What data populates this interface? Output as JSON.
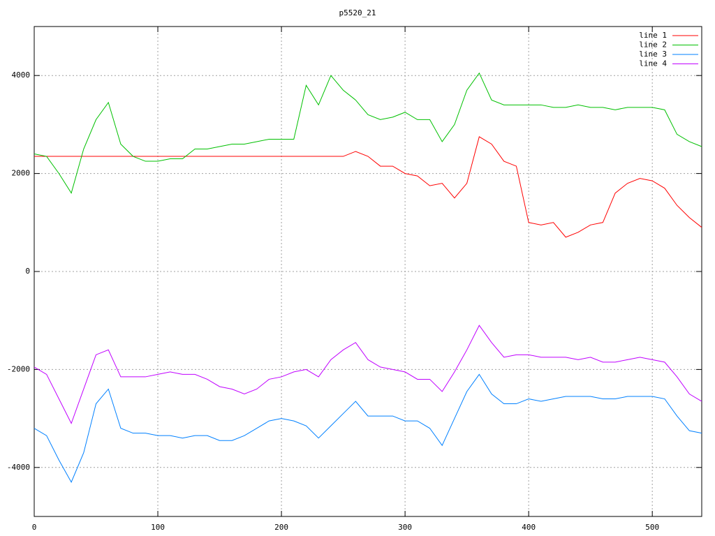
{
  "chart_data": {
    "type": "line",
    "title": "p5520_21",
    "x": [
      0,
      10,
      20,
      30,
      40,
      50,
      60,
      70,
      80,
      90,
      100,
      110,
      120,
      130,
      140,
      150,
      160,
      170,
      180,
      190,
      200,
      210,
      220,
      230,
      240,
      250,
      260,
      270,
      280,
      290,
      300,
      310,
      320,
      330,
      340,
      350,
      360,
      370,
      380,
      390,
      400,
      410,
      420,
      430,
      440,
      450,
      460,
      470,
      480,
      490,
      500,
      510,
      520,
      530,
      540
    ],
    "series": [
      {
        "name": "line 1",
        "color": "#ff0000",
        "values": [
          2350,
          2350,
          2350,
          2350,
          2350,
          2350,
          2350,
          2350,
          2350,
          2350,
          2350,
          2350,
          2350,
          2350,
          2350,
          2350,
          2350,
          2350,
          2350,
          2350,
          2350,
          2350,
          2350,
          2350,
          2350,
          2350,
          2450,
          2350,
          2150,
          2150,
          2000,
          1950,
          1750,
          1800,
          1500,
          1800,
          2750,
          2600,
          2250,
          2150,
          1000,
          950,
          1000,
          700,
          800,
          950,
          1000,
          1600,
          1800,
          1900,
          1850,
          1700,
          1350,
          1100,
          900
        ]
      },
      {
        "name": "line 2",
        "color": "#00c000",
        "values": [
          2400,
          2350,
          2000,
          1600,
          2500,
          3100,
          3450,
          2600,
          2350,
          2250,
          2250,
          2300,
          2300,
          2500,
          2500,
          2550,
          2600,
          2600,
          2650,
          2700,
          2700,
          2700,
          3800,
          3400,
          4000,
          3700,
          3500,
          3200,
          3100,
          3150,
          3250,
          3100,
          3100,
          2650,
          3000,
          3700,
          4050,
          3500,
          3400,
          3400,
          3400,
          3400,
          3350,
          3350,
          3400,
          3350,
          3350,
          3300,
          3350,
          3350,
          3350,
          3300,
          2800,
          2650,
          2550
        ]
      },
      {
        "name": "line 3",
        "color": "#0080ff",
        "values": [
          -3200,
          -3350,
          -3850,
          -4300,
          -3700,
          -2700,
          -2400,
          -3200,
          -3300,
          -3300,
          -3350,
          -3350,
          -3400,
          -3350,
          -3350,
          -3450,
          -3450,
          -3350,
          -3200,
          -3050,
          -3000,
          -3050,
          -3150,
          -3400,
          -3150,
          -2900,
          -2650,
          -2950,
          -2950,
          -2950,
          -3050,
          -3050,
          -3200,
          -3550,
          -3000,
          -2450,
          -2100,
          -2500,
          -2700,
          -2700,
          -2600,
          -2650,
          -2600,
          -2550,
          -2550,
          -2550,
          -2600,
          -2600,
          -2550,
          -2550,
          -2550,
          -2600,
          -2950,
          -3250,
          -3300
        ]
      },
      {
        "name": "line 4",
        "color": "#c000ff",
        "values": [
          -1950,
          -2100,
          -2600,
          -3100,
          -2400,
          -1700,
          -1600,
          -2150,
          -2150,
          -2150,
          -2100,
          -2050,
          -2100,
          -2100,
          -2200,
          -2350,
          -2400,
          -2500,
          -2400,
          -2200,
          -2150,
          -2050,
          -2000,
          -2150,
          -1800,
          -1600,
          -1450,
          -1800,
          -1950,
          -2000,
          -2050,
          -2200,
          -2200,
          -2450,
          -2050,
          -1600,
          -1100,
          -1450,
          -1750,
          -1700,
          -1700,
          -1750,
          -1750,
          -1750,
          -1800,
          -1750,
          -1850,
          -1850,
          -1800,
          -1750,
          -1800,
          -1850,
          -2150,
          -2500,
          -2650
        ]
      }
    ],
    "xlim": [
      0,
      540
    ],
    "ylim": [
      -5000,
      5000
    ],
    "xticks": [
      0,
      100,
      200,
      300,
      400,
      500
    ],
    "yticks": [
      -4000,
      -2000,
      0,
      2000,
      4000
    ],
    "grid": true,
    "legend": "top-right"
  }
}
